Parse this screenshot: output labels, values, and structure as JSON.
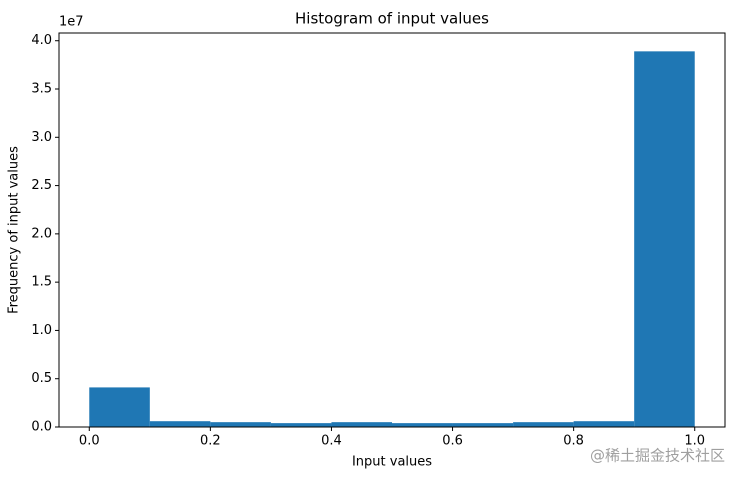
{
  "chart_data": {
    "type": "histogram",
    "title": "Histogram of input values",
    "xlabel": "Input values",
    "ylabel": "Frequency of input values",
    "y_offset_label": "1e7",
    "bins": [
      0,
      0.1,
      0.2,
      0.3,
      0.4,
      0.5,
      0.6,
      0.7,
      0.8,
      0.9,
      1.0
    ],
    "values": [
      0.41,
      0.06,
      0.05,
      0.04,
      0.05,
      0.04,
      0.04,
      0.05,
      0.06,
      3.89
    ],
    "color": "#1f77b4",
    "xlim": [
      -0.05,
      1.05
    ],
    "xticks": [
      {
        "value": 0,
        "label": "0.0"
      },
      0.2,
      0.4,
      0.6,
      0.8,
      {
        "value": 1,
        "label": "1.0"
      }
    ],
    "ylim": [
      0,
      4.08
    ],
    "yticks": [
      {
        "value": 0,
        "label": "0.0"
      },
      0.5,
      {
        "value": 1,
        "label": "1.0"
      },
      1.5,
      {
        "value": 2,
        "label": "2.0"
      },
      2.5,
      {
        "value": 3,
        "label": "3.0"
      },
      3.5,
      {
        "value": 4,
        "label": "4.0"
      }
    ],
    "watermark": "@稀土掘金技术社区"
  }
}
